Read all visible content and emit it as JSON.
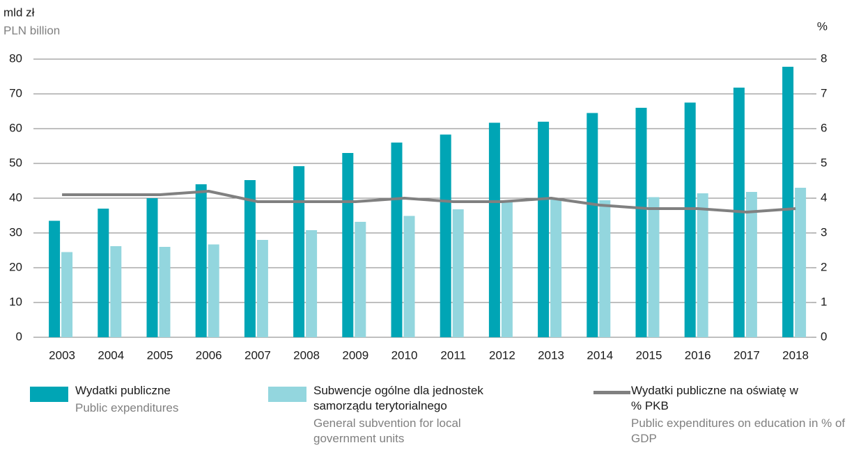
{
  "chart_data": {
    "type": "bar",
    "y_axis_title": "mld zł",
    "y_axis_subtitle": "PLN billion",
    "y2_axis_title": "%",
    "categories": [
      "2003",
      "2004",
      "2005",
      "2006",
      "2007",
      "2008",
      "2009",
      "2010",
      "2011",
      "2012",
      "2013",
      "2014",
      "2015",
      "2016",
      "2017",
      "2018"
    ],
    "series": [
      {
        "name": "Wydatki publiczne",
        "name_en": "Public expenditures",
        "type": "bar",
        "color": "#00a5b5",
        "values": [
          33.5,
          37,
          40,
          44,
          45.2,
          49.2,
          53,
          56,
          58.3,
          61.7,
          62,
          64.5,
          66,
          67.5,
          71.8,
          77.8
        ]
      },
      {
        "name": "Subwencje ogólne dla jednostek samorządu terytorialnego",
        "name_en": "General subvention for local government units",
        "type": "bar",
        "color": "#93d6de",
        "values": [
          24.5,
          26.2,
          26,
          26.7,
          28,
          30.8,
          33.2,
          34.9,
          36.8,
          39.2,
          39.8,
          39.4,
          40.3,
          41.4,
          41.8,
          43
        ]
      },
      {
        "name": "Wydatki publiczne na oświatę w % PKB",
        "name_en": "Public expenditures on education in % of GDP",
        "type": "line",
        "axis": "y2",
        "color": "#808080",
        "values": [
          4.1,
          4.1,
          4.1,
          4.2,
          3.9,
          3.9,
          3.9,
          4.0,
          3.9,
          3.9,
          4.0,
          3.8,
          3.7,
          3.7,
          3.6,
          3.7
        ]
      }
    ],
    "ylim": [
      0,
      80
    ],
    "yticks": [
      0,
      10,
      20,
      30,
      40,
      50,
      60,
      70,
      80
    ],
    "y2lim": [
      0,
      8
    ],
    "y2ticks": [
      0,
      1,
      2,
      3,
      4,
      5,
      6,
      7,
      8
    ],
    "grid": true
  }
}
